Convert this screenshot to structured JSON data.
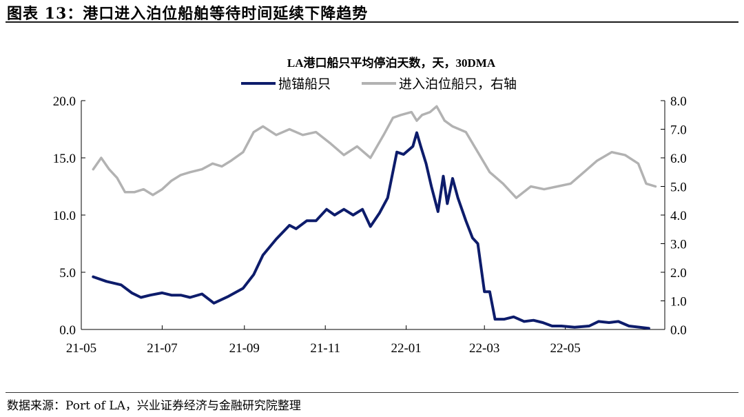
{
  "figure": {
    "title": "图表 13：港口进入泊位船舶等待时间延续下降趋势",
    "source": "数据来源：Port of LA，兴业证券经济与金融研究院整理"
  },
  "chart_data": {
    "type": "line",
    "title": "LA港口船只平均停泊天数，天，30DMA",
    "legend_position": "top",
    "grid": false,
    "x_ticks": [
      "21-05",
      "21-07",
      "21-09",
      "21-11",
      "22-01",
      "22-03",
      "22-05"
    ],
    "left_axis": {
      "ylim": [
        0,
        20
      ],
      "ticks": [
        "0.0",
        "5.0",
        "10.0",
        "15.0",
        "20.0"
      ]
    },
    "right_axis": {
      "ylim": [
        0,
        8
      ],
      "ticks": [
        "0.0",
        "1.0",
        "2.0",
        "3.0",
        "4.0",
        "5.0",
        "6.0",
        "7.0",
        "8.0"
      ]
    },
    "series": [
      {
        "name": "抛锚船只",
        "axis": "left",
        "color": "#0d1c6b",
        "points": [
          [
            "2021-05-10",
            4.6
          ],
          [
            "2021-05-20",
            4.2
          ],
          [
            "2021-05-31",
            3.9
          ],
          [
            "2021-06-08",
            3.2
          ],
          [
            "2021-06-15",
            2.8
          ],
          [
            "2021-06-22",
            3.0
          ],
          [
            "2021-07-01",
            3.2
          ],
          [
            "2021-07-08",
            3.0
          ],
          [
            "2021-07-15",
            3.0
          ],
          [
            "2021-07-22",
            2.8
          ],
          [
            "2021-07-31",
            3.1
          ],
          [
            "2021-08-09",
            2.3
          ],
          [
            "2021-08-20",
            2.9
          ],
          [
            "2021-08-31",
            3.6
          ],
          [
            "2021-09-08",
            4.8
          ],
          [
            "2021-09-15",
            6.5
          ],
          [
            "2021-09-25",
            7.9
          ],
          [
            "2021-10-05",
            9.1
          ],
          [
            "2021-10-10",
            8.8
          ],
          [
            "2021-10-18",
            9.5
          ],
          [
            "2021-10-25",
            9.5
          ],
          [
            "2021-11-02",
            10.5
          ],
          [
            "2021-11-08",
            10.0
          ],
          [
            "2021-11-15",
            10.5
          ],
          [
            "2021-11-22",
            10.0
          ],
          [
            "2021-11-29",
            10.5
          ],
          [
            "2021-12-05",
            9.0
          ],
          [
            "2021-12-12",
            10.2
          ],
          [
            "2021-12-18",
            11.5
          ],
          [
            "2021-12-25",
            15.5
          ],
          [
            "2021-12-30",
            15.3
          ],
          [
            "2022-01-06",
            16.0
          ],
          [
            "2022-01-09",
            17.2
          ],
          [
            "2022-01-12",
            16.0
          ],
          [
            "2022-01-16",
            14.5
          ],
          [
            "2022-01-20",
            12.5
          ],
          [
            "2022-01-25",
            10.3
          ],
          [
            "2022-01-29",
            13.4
          ],
          [
            "2022-02-01",
            11.0
          ],
          [
            "2022-02-05",
            13.2
          ],
          [
            "2022-02-09",
            11.5
          ],
          [
            "2022-02-15",
            9.5
          ],
          [
            "2022-02-20",
            8.0
          ],
          [
            "2022-02-24",
            7.5
          ],
          [
            "2022-03-01",
            3.3
          ],
          [
            "2022-03-05",
            3.3
          ],
          [
            "2022-03-09",
            0.9
          ],
          [
            "2022-03-16",
            0.9
          ],
          [
            "2022-03-23",
            1.1
          ],
          [
            "2022-03-31",
            0.7
          ],
          [
            "2022-04-07",
            0.8
          ],
          [
            "2022-04-14",
            0.6
          ],
          [
            "2022-04-21",
            0.3
          ],
          [
            "2022-04-28",
            0.3
          ],
          [
            "2022-05-08",
            0.2
          ],
          [
            "2022-05-19",
            0.3
          ],
          [
            "2022-05-26",
            0.7
          ],
          [
            "2022-06-03",
            0.6
          ],
          [
            "2022-06-10",
            0.7
          ],
          [
            "2022-06-18",
            0.3
          ],
          [
            "2022-06-26",
            0.2
          ],
          [
            "2022-07-03",
            0.1
          ]
        ]
      },
      {
        "name": "进入泊位船只，右轴",
        "axis": "right",
        "color": "#b2b2b2",
        "points": [
          [
            "2021-05-10",
            5.6
          ],
          [
            "2021-05-16",
            6.0
          ],
          [
            "2021-05-22",
            5.6
          ],
          [
            "2021-05-28",
            5.3
          ],
          [
            "2021-06-03",
            4.8
          ],
          [
            "2021-06-10",
            4.8
          ],
          [
            "2021-06-17",
            4.9
          ],
          [
            "2021-06-24",
            4.7
          ],
          [
            "2021-07-01",
            4.9
          ],
          [
            "2021-07-08",
            5.2
          ],
          [
            "2021-07-15",
            5.4
          ],
          [
            "2021-07-22",
            5.5
          ],
          [
            "2021-07-31",
            5.6
          ],
          [
            "2021-08-08",
            5.8
          ],
          [
            "2021-08-15",
            5.7
          ],
          [
            "2021-08-22",
            5.9
          ],
          [
            "2021-08-31",
            6.2
          ],
          [
            "2021-09-08",
            6.9
          ],
          [
            "2021-09-15",
            7.1
          ],
          [
            "2021-09-25",
            6.8
          ],
          [
            "2021-10-05",
            7.0
          ],
          [
            "2021-10-15",
            6.8
          ],
          [
            "2021-10-25",
            6.9
          ],
          [
            "2021-11-05",
            6.5
          ],
          [
            "2021-11-15",
            6.1
          ],
          [
            "2021-11-25",
            6.4
          ],
          [
            "2021-12-05",
            6.0
          ],
          [
            "2021-12-15",
            6.8
          ],
          [
            "2021-12-22",
            7.4
          ],
          [
            "2021-12-28",
            7.5
          ],
          [
            "2022-01-05",
            7.6
          ],
          [
            "2022-01-09",
            7.3
          ],
          [
            "2022-01-13",
            7.5
          ],
          [
            "2022-01-19",
            7.6
          ],
          [
            "2022-01-24",
            7.8
          ],
          [
            "2022-01-30",
            7.3
          ],
          [
            "2022-02-05",
            7.1
          ],
          [
            "2022-02-15",
            6.9
          ],
          [
            "2022-02-24",
            6.2
          ],
          [
            "2022-03-05",
            5.5
          ],
          [
            "2022-03-15",
            5.1
          ],
          [
            "2022-03-25",
            4.6
          ],
          [
            "2022-04-05",
            5.0
          ],
          [
            "2022-04-15",
            4.9
          ],
          [
            "2022-04-25",
            5.0
          ],
          [
            "2022-05-05",
            5.1
          ],
          [
            "2022-05-15",
            5.5
          ],
          [
            "2022-05-25",
            5.9
          ],
          [
            "2022-06-05",
            6.2
          ],
          [
            "2022-06-15",
            6.1
          ],
          [
            "2022-06-25",
            5.8
          ],
          [
            "2022-07-01",
            5.1
          ],
          [
            "2022-07-08",
            5.0
          ]
        ]
      }
    ]
  }
}
